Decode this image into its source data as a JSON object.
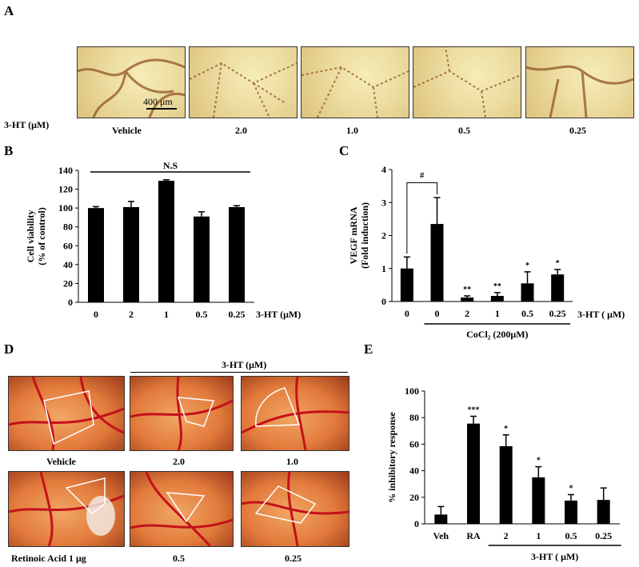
{
  "panels": {
    "a": "A",
    "b": "B",
    "c": "C",
    "d": "D",
    "e": "E"
  },
  "panel_a": {
    "row_label": "3-HT (μM)",
    "scale_bar": "400 μm",
    "labels": [
      "Vehicle",
      "2.0",
      "1.0",
      "0.5",
      "0.25"
    ]
  },
  "panel_d": {
    "header": "3-HT (μM)",
    "labels": [
      "Vehicle",
      "2.0",
      "1.0",
      "Retinoic Acid 1 μg",
      "0.5",
      "0.25"
    ]
  },
  "colors": {
    "bar": "#000000",
    "vessel": "#c4111a",
    "outline": "#ffffff"
  },
  "chart_data": [
    {
      "id": "B",
      "type": "bar",
      "ylabel": "Cell viability (% of control)",
      "ylabel_lines": [
        "Cell viability",
        "(% of control)"
      ],
      "ylim": [
        0,
        140
      ],
      "yticks": [
        0,
        20,
        40,
        60,
        80,
        100,
        120,
        140
      ],
      "categories": [
        "0",
        "2",
        "1",
        "0.5",
        "0.25"
      ],
      "values": [
        100,
        101,
        129,
        91,
        101
      ],
      "errors": [
        1.5,
        6,
        1,
        5,
        1.5
      ],
      "xlabel": "3-HT (μM)",
      "annotation": "N.S"
    },
    {
      "id": "C",
      "type": "bar",
      "ylabel": "VEGF mRNA (Fold induction)",
      "ylabel_lines": [
        "VEGF mRNA",
        "(Fold induction)"
      ],
      "ylim": [
        0,
        4
      ],
      "yticks": [
        0,
        1,
        2,
        3,
        4
      ],
      "categories": [
        "0",
        "0",
        "2",
        "1",
        "0.5",
        "0.25"
      ],
      "values": [
        1.0,
        2.35,
        0.12,
        0.17,
        0.55,
        0.82
      ],
      "errors": [
        0.35,
        0.8,
        0.05,
        0.1,
        0.35,
        0.15
      ],
      "significance": [
        "",
        "",
        "**",
        "**",
        "*",
        "*"
      ],
      "bracket": "#",
      "xlabel": "3-HT ( μM)",
      "group_label": "CoCl₂ (200μM)"
    },
    {
      "id": "E",
      "type": "bar",
      "ylabel": "% inhibitory response",
      "ylim": [
        0,
        100
      ],
      "yticks": [
        0,
        20,
        40,
        60,
        80,
        100
      ],
      "categories": [
        "Veh",
        "RA",
        "2",
        "1",
        "0.5",
        "0.25"
      ],
      "values": [
        7,
        75.5,
        58.5,
        35,
        17.5,
        18
      ],
      "errors": [
        6,
        5.5,
        8.5,
        8,
        4.5,
        9
      ],
      "significance": [
        "",
        "***",
        "*",
        "*",
        "*",
        ""
      ],
      "group_label": "3-HT ( μM)"
    }
  ]
}
